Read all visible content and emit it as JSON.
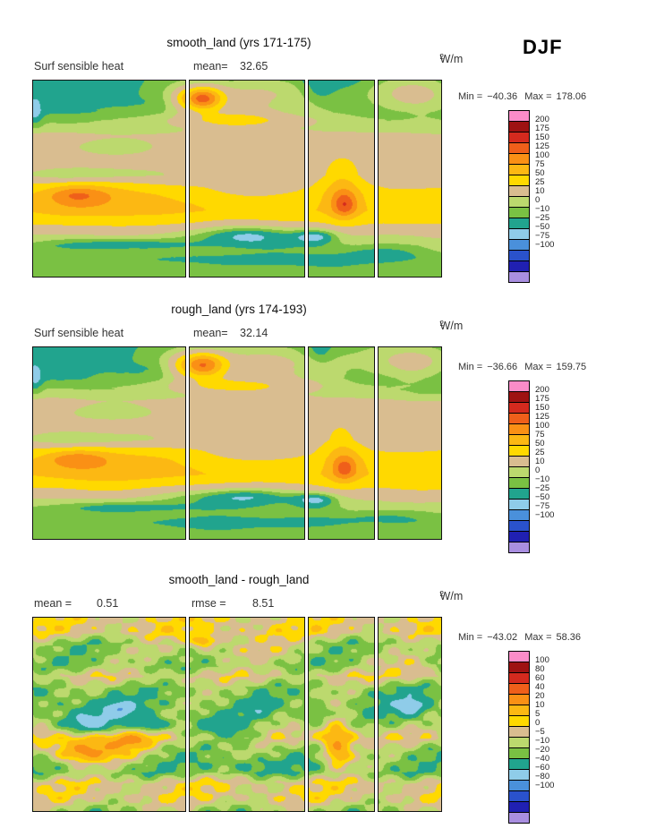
{
  "page": {
    "background": "#ffffff"
  },
  "chart_data": {
    "type": "heatmap",
    "season": "DJF",
    "variable": "Surf sensible heat",
    "units_base": "W/m",
    "units_exp": "2",
    "section_fractions": [
      0,
      0.385,
      0.675,
      0.84,
      1.0
    ],
    "palette": [
      "#fa8cc8",
      "#9e1212",
      "#d42a1e",
      "#ef5f1a",
      "#fa9015",
      "#fcb813",
      "#ffd900",
      "#d9bd90",
      "#bcd96e",
      "#7ac143",
      "#21a48e",
      "#8fcce9",
      "#4a90db",
      "#2a52cc",
      "#2020b2",
      "#a98fe0"
    ],
    "panels": [
      {
        "title": "smooth_land (yrs 171-175)",
        "left_label": "Surf sensible heat",
        "stats": {
          "label1": "mean=",
          "value1": "32.65"
        },
        "minmax": {
          "min_label": "Min =",
          "min": "−40.36",
          "max_label": "Max =",
          "max": "178.06"
        },
        "levels": [
          200,
          175,
          150,
          125,
          100,
          75,
          50,
          25,
          10,
          0,
          -10,
          -25,
          -50,
          -75,
          -100
        ],
        "level_labels": [
          "200",
          "175",
          "150",
          "125",
          "100",
          "75",
          "50",
          "25",
          "10",
          "0",
          "−10",
          "−25",
          "−50",
          "−75",
          "−100"
        ],
        "field": {
          "profile": [
            [
              0,
              -6
            ],
            [
              0.1,
              -7
            ],
            [
              0.16,
              -3
            ],
            [
              0.2,
              6
            ],
            [
              0.24,
              12
            ],
            [
              0.28,
              30
            ],
            [
              0.4,
              36
            ],
            [
              0.48,
              33
            ],
            [
              0.52,
              45
            ],
            [
              0.58,
              62
            ],
            [
              0.66,
              72
            ],
            [
              0.72,
              55
            ],
            [
              0.78,
              30
            ],
            [
              0.84,
              12
            ],
            [
              0.9,
              6
            ],
            [
              1.0,
              4
            ]
          ],
          "blobs": [
            [
              0.53,
              0.08,
              0.13,
              0.07,
              40
            ],
            [
              0.93,
              0.07,
              0.07,
              0.06,
              38
            ],
            [
              0.415,
              0.09,
              0.035,
              0.04,
              120
            ],
            [
              0.5,
              0.2,
              0.12,
              0.035,
              48
            ],
            [
              0.7,
              0.04,
              0.025,
              0.04,
              -13
            ],
            [
              0.004,
              0.17,
              0.013,
              0.05,
              -16
            ],
            [
              0.19,
              0.34,
              0.09,
              0.03,
              -13
            ],
            [
              0.13,
              0.48,
              0.13,
              0.03,
              -22
            ],
            [
              0.16,
              0.6,
              0.12,
              0.07,
              32
            ],
            [
              0.11,
              0.58,
              0.05,
              0.035,
              42
            ],
            [
              0.55,
              0.55,
              0.07,
              0.035,
              -28
            ],
            [
              0.76,
              0.56,
              0.035,
              0.11,
              38
            ],
            [
              0.765,
              0.63,
              0.02,
              0.04,
              55
            ],
            [
              0.52,
              0.78,
              0.1,
              0.045,
              -42
            ],
            [
              0.7,
              0.79,
              0.04,
              0.03,
              -30
            ],
            [
              0.22,
              0.83,
              0.12,
              0.025,
              -22
            ],
            [
              0.5,
              0.91,
              0.28,
              0.02,
              -11
            ],
            [
              0.85,
              0.88,
              0.07,
              0.025,
              -11
            ]
          ],
          "noise": [
            3,
            8,
            6,
            2,
            23,
            19
          ]
        }
      },
      {
        "title": "rough_land (yrs 174-193)",
        "left_label": "Surf sensible heat",
        "stats": {
          "label1": "mean=",
          "value1": "32.14"
        },
        "minmax": {
          "min_label": "Min =",
          "min": "−36.66",
          "max_label": "Max =",
          "max": "159.75"
        },
        "levels": [
          200,
          175,
          150,
          125,
          100,
          75,
          50,
          25,
          10,
          0,
          -10,
          -25,
          -50,
          -75,
          -100
        ],
        "level_labels": [
          "200",
          "175",
          "150",
          "125",
          "100",
          "75",
          "50",
          "25",
          "10",
          "0",
          "−10",
          "−25",
          "−50",
          "−75",
          "−100"
        ],
        "field": {
          "profile": [
            [
              0,
              -6
            ],
            [
              0.1,
              -7
            ],
            [
              0.16,
              -3
            ],
            [
              0.2,
              6
            ],
            [
              0.24,
              12
            ],
            [
              0.28,
              30
            ],
            [
              0.4,
              36
            ],
            [
              0.48,
              33
            ],
            [
              0.52,
              45
            ],
            [
              0.58,
              62
            ],
            [
              0.66,
              72
            ],
            [
              0.72,
              55
            ],
            [
              0.78,
              30
            ],
            [
              0.84,
              12
            ],
            [
              0.9,
              6
            ],
            [
              1.0,
              4
            ]
          ],
          "blobs": [
            [
              0.55,
              0.08,
              0.15,
              0.07,
              40
            ],
            [
              0.93,
              0.07,
              0.07,
              0.06,
              38
            ],
            [
              0.415,
              0.09,
              0.04,
              0.045,
              110
            ],
            [
              0.5,
              0.2,
              0.12,
              0.035,
              45
            ],
            [
              0.7,
              0.04,
              0.025,
              0.04,
              -13
            ],
            [
              0.004,
              0.17,
              0.013,
              0.05,
              -16
            ],
            [
              0.19,
              0.34,
              0.09,
              0.03,
              -13
            ],
            [
              0.13,
              0.48,
              0.13,
              0.03,
              -22
            ],
            [
              0.16,
              0.6,
              0.12,
              0.07,
              30
            ],
            [
              0.11,
              0.58,
              0.05,
              0.03,
              36
            ],
            [
              0.55,
              0.55,
              0.07,
              0.035,
              -28
            ],
            [
              0.76,
              0.56,
              0.035,
              0.11,
              36
            ],
            [
              0.765,
              0.63,
              0.02,
              0.04,
              45
            ],
            [
              0.5,
              0.77,
              0.12,
              0.04,
              -40
            ],
            [
              0.7,
              0.79,
              0.04,
              0.03,
              -30
            ],
            [
              0.22,
              0.83,
              0.12,
              0.025,
              -22
            ],
            [
              0.5,
              0.91,
              0.28,
              0.02,
              -11
            ],
            [
              0.85,
              0.88,
              0.07,
              0.025,
              -11
            ]
          ],
          "noise": [
            3,
            9,
            7,
            2,
            25,
            21
          ]
        }
      },
      {
        "title": "smooth_land - rough_land",
        "left_label": "",
        "stats": {
          "label1": "mean =",
          "value1": "0.51",
          "label2": "rmse =",
          "value2": "8.51"
        },
        "minmax": {
          "min_label": "Min =",
          "min": "−43.02",
          "max_label": "Max =",
          "max": "58.36"
        },
        "levels": [
          100,
          80,
          60,
          40,
          20,
          10,
          5,
          0,
          -5,
          -10,
          -20,
          -40,
          -60,
          -80,
          -100
        ],
        "level_labels": [
          "100",
          "80",
          "60",
          "40",
          "20",
          "10",
          "5",
          "0",
          "−5",
          "−10",
          "−20",
          "−40",
          "−60",
          "−80",
          "−100"
        ],
        "field": {
          "profile": [
            [
              0,
              4
            ],
            [
              0.07,
              4
            ],
            [
              0.13,
              -6
            ],
            [
              0.25,
              -6
            ],
            [
              0.3,
              2
            ],
            [
              0.36,
              -6
            ],
            [
              0.45,
              -7
            ],
            [
              0.55,
              -5
            ],
            [
              0.62,
              2
            ],
            [
              0.68,
              -6
            ],
            [
              0.8,
              -7
            ],
            [
              0.85,
              3
            ],
            [
              0.93,
              3
            ],
            [
              1.0,
              -5
            ]
          ],
          "blobs": [
            [
              0.17,
              0.5,
              0.1,
              0.07,
              -8
            ],
            [
              0.14,
              0.54,
              0.035,
              0.03,
              -14
            ],
            [
              0.22,
              0.47,
              0.022,
              0.022,
              -24
            ],
            [
              0.3,
              0.55,
              0.025,
              0.025,
              -16
            ],
            [
              0.15,
              0.67,
              0.09,
              0.05,
              22
            ],
            [
              0.12,
              0.7,
              0.04,
              0.03,
              12
            ],
            [
              0.25,
              0.63,
              0.03,
              0.025,
              14
            ],
            [
              0.45,
              0.55,
              0.05,
              0.04,
              -8
            ],
            [
              0.52,
              0.62,
              0.04,
              0.03,
              -10
            ],
            [
              0.56,
              0.47,
              0.03,
              0.03,
              -9
            ],
            [
              0.52,
              0.76,
              0.09,
              0.03,
              -6
            ],
            [
              0.745,
              0.62,
              0.03,
              0.09,
              20
            ],
            [
              0.75,
              0.7,
              0.02,
              0.04,
              13
            ],
            [
              0.7,
              0.5,
              0.03,
              0.04,
              -9
            ],
            [
              0.92,
              0.45,
              0.045,
              0.055,
              -10
            ],
            [
              0.92,
              0.46,
              0.02,
              0.025,
              -14
            ],
            [
              0.93,
              0.25,
              0.05,
              0.04,
              9
            ],
            [
              0.5,
              0.15,
              0.12,
              0.05,
              8
            ],
            [
              0.42,
              0.12,
              0.02,
              0.02,
              18
            ]
          ],
          "noise": [
            4,
            20,
            14,
            4,
            70,
            57
          ]
        }
      }
    ]
  }
}
